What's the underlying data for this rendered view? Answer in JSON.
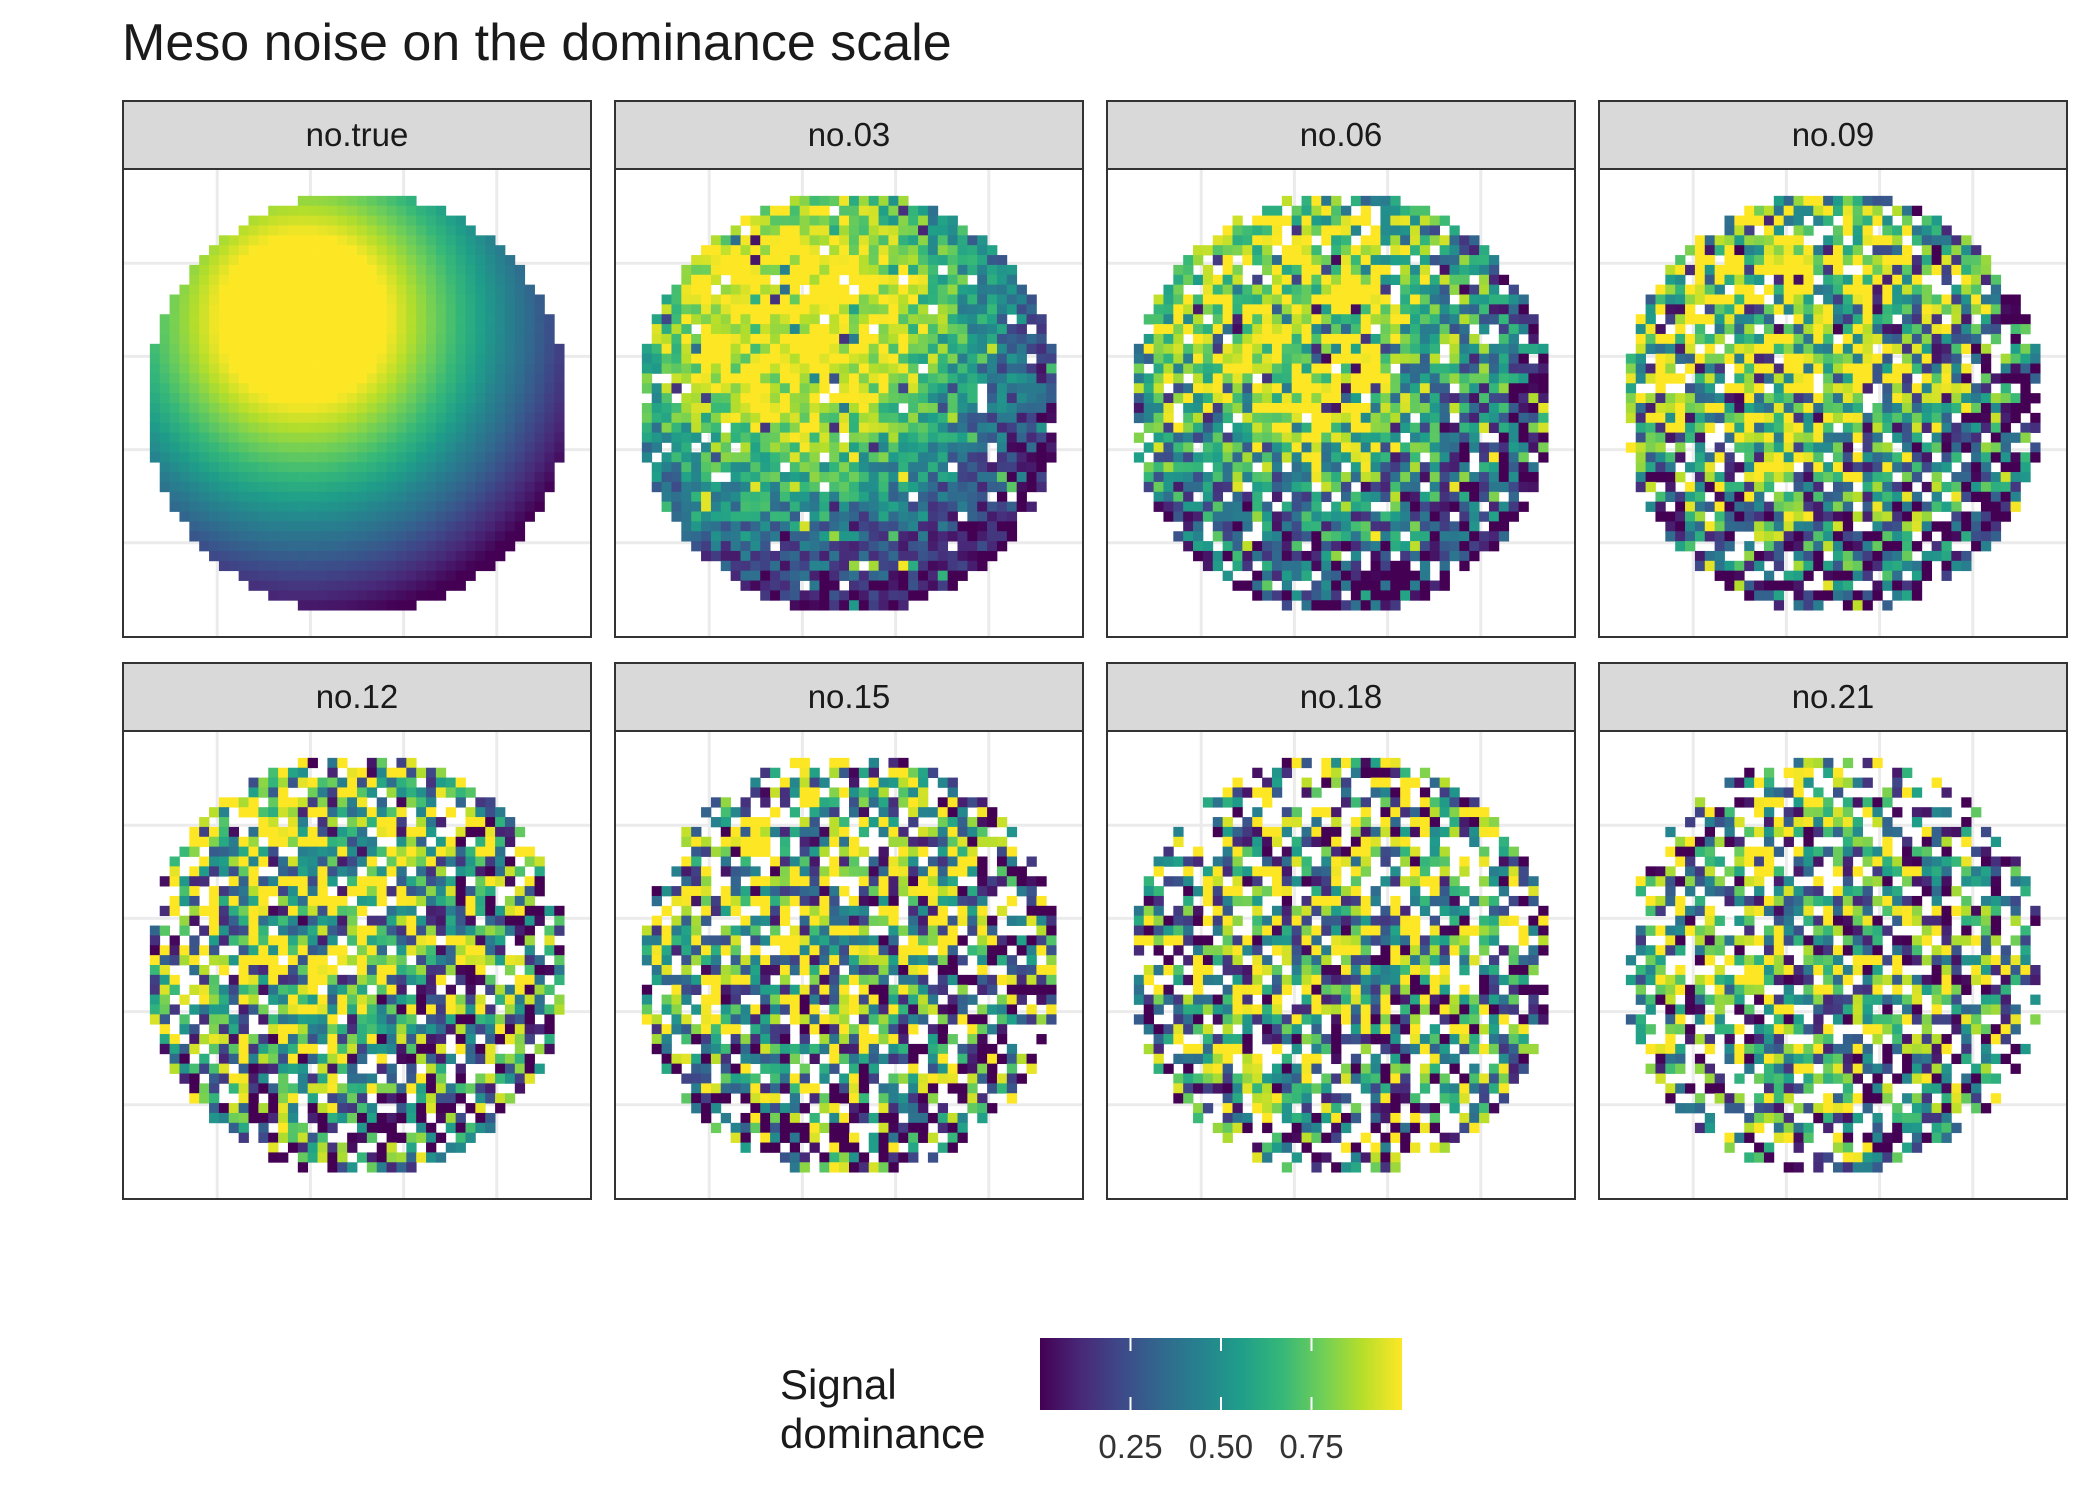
{
  "title": "Meso noise on the dominance scale",
  "chart_data": {
    "type": "heatmap",
    "title": "Meso noise on the dominance scale",
    "facet_variable": "noise level",
    "panels": [
      {
        "label": "no.true",
        "noise": 0.0
      },
      {
        "label": "no.03",
        "noise": 0.03
      },
      {
        "label": "no.06",
        "noise": 0.06
      },
      {
        "label": "no.09",
        "noise": 0.09
      },
      {
        "label": "no.12",
        "noise": 0.12
      },
      {
        "label": "no.15",
        "noise": 0.15
      },
      {
        "label": "no.18",
        "noise": 0.18
      },
      {
        "label": "no.21",
        "noise": 0.21
      }
    ],
    "grid_size": 44,
    "domain": "disc",
    "fill_variable": "Signal dominance",
    "color_scale": "viridis",
    "color_range": [
      0,
      1
    ],
    "legend": {
      "title_lines": [
        "Signal",
        "dominance"
      ],
      "ticks": [
        0.25,
        0.5,
        0.75
      ],
      "tick_labels": [
        "0.25",
        "0.50",
        "0.75"
      ],
      "position": "bottom"
    },
    "x_axis": {
      "label": "",
      "ticks_shown": false
    },
    "y_axis": {
      "label": "",
      "ticks_shown": false
    }
  },
  "colors": {
    "strip_fill": "#d9d9d9",
    "panel_border": "#333333",
    "gridline": "#ebebeb",
    "viridis_stops": [
      "#440154",
      "#482878",
      "#3e4989",
      "#31688e",
      "#26828e",
      "#1f9e89",
      "#35b779",
      "#6ece58",
      "#b5de2b",
      "#fde725"
    ]
  }
}
